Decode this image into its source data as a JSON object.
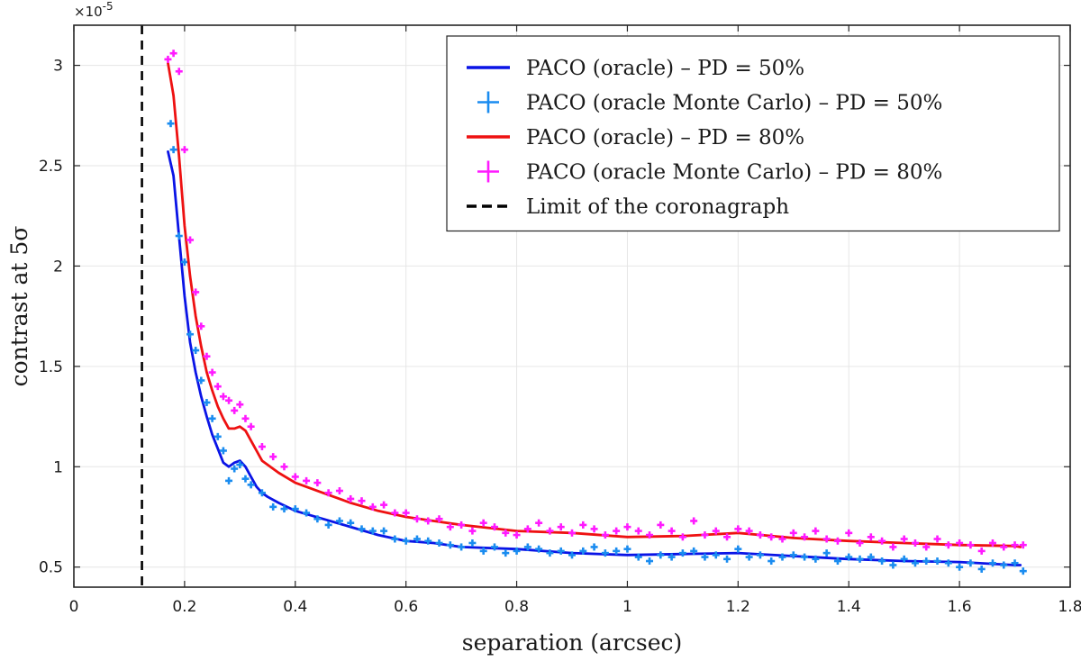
{
  "chart_data": {
    "type": "line",
    "xlabel": "separation (arcsec)",
    "ylabel": "contrast at 5σ",
    "y_exponent_label": "×10",
    "y_exponent_power": "-5",
    "xlim": [
      0,
      1.8
    ],
    "ylim": [
      0.4,
      3.2
    ],
    "x_ticks": [
      0,
      0.2,
      0.4,
      0.6,
      0.8,
      1,
      1.2,
      1.4,
      1.6,
      1.8
    ],
    "x_tick_labels": [
      "0",
      "0.2",
      "0.4",
      "0.6",
      "0.8",
      "1",
      "1.2",
      "1.4",
      "1.6",
      "1.8"
    ],
    "y_ticks": [
      0.5,
      1,
      1.5,
      2,
      2.5,
      3
    ],
    "y_tick_labels": [
      "0.5",
      "1",
      "1.5",
      "2",
      "2.5",
      "3"
    ],
    "grid": true,
    "legend_position": "top-right",
    "colors": {
      "blue_line": "#0a14e6",
      "blue_markers": "#1a8cf0",
      "red_line": "#ee1111",
      "magenta_markers": "#ff1aff",
      "limit_line": "#000000"
    },
    "series": [
      {
        "name": "PACO (oracle) – PD = 50%",
        "kind": "line",
        "color_key": "blue_line",
        "x": [
          0.17,
          0.18,
          0.19,
          0.2,
          0.21,
          0.22,
          0.23,
          0.24,
          0.25,
          0.26,
          0.27,
          0.28,
          0.29,
          0.3,
          0.31,
          0.32,
          0.33,
          0.34,
          0.35,
          0.37,
          0.4,
          0.45,
          0.5,
          0.55,
          0.6,
          0.65,
          0.7,
          0.8,
          0.9,
          1.0,
          1.1,
          1.2,
          1.3,
          1.4,
          1.5,
          1.6,
          1.7,
          1.71
        ],
        "y": [
          2.57,
          2.45,
          2.15,
          1.85,
          1.62,
          1.47,
          1.35,
          1.25,
          1.16,
          1.09,
          1.02,
          1.0,
          1.02,
          1.03,
          1.0,
          0.95,
          0.9,
          0.87,
          0.85,
          0.82,
          0.78,
          0.74,
          0.7,
          0.66,
          0.63,
          0.62,
          0.6,
          0.59,
          0.57,
          0.56,
          0.565,
          0.57,
          0.555,
          0.54,
          0.53,
          0.525,
          0.51,
          0.51
        ]
      },
      {
        "name": "PACO (oracle Monte Carlo) – PD = 50%",
        "kind": "markers",
        "color_key": "blue_markers",
        "x": [
          0.175,
          0.18,
          0.19,
          0.2,
          0.21,
          0.22,
          0.23,
          0.24,
          0.25,
          0.26,
          0.27,
          0.28,
          0.29,
          0.3,
          0.31,
          0.32,
          0.34,
          0.36,
          0.38,
          0.4,
          0.42,
          0.44,
          0.46,
          0.48,
          0.5,
          0.52,
          0.54,
          0.56,
          0.58,
          0.6,
          0.62,
          0.64,
          0.66,
          0.68,
          0.7,
          0.72,
          0.74,
          0.76,
          0.78,
          0.8,
          0.82,
          0.84,
          0.86,
          0.88,
          0.9,
          0.92,
          0.94,
          0.96,
          0.98,
          1.0,
          1.02,
          1.04,
          1.06,
          1.08,
          1.1,
          1.12,
          1.14,
          1.16,
          1.18,
          1.2,
          1.22,
          1.24,
          1.26,
          1.28,
          1.3,
          1.32,
          1.34,
          1.36,
          1.38,
          1.4,
          1.42,
          1.44,
          1.46,
          1.48,
          1.5,
          1.52,
          1.54,
          1.56,
          1.58,
          1.6,
          1.62,
          1.64,
          1.66,
          1.68,
          1.7,
          1.715
        ],
        "y": [
          2.71,
          2.58,
          2.15,
          2.02,
          1.66,
          1.58,
          1.43,
          1.32,
          1.24,
          1.15,
          1.08,
          0.93,
          0.99,
          1.01,
          0.94,
          0.91,
          0.87,
          0.8,
          0.79,
          0.79,
          0.77,
          0.74,
          0.71,
          0.73,
          0.72,
          0.69,
          0.68,
          0.68,
          0.64,
          0.63,
          0.64,
          0.63,
          0.62,
          0.61,
          0.6,
          0.62,
          0.58,
          0.6,
          0.57,
          0.58,
          0.6,
          0.59,
          0.57,
          0.58,
          0.56,
          0.58,
          0.6,
          0.57,
          0.58,
          0.59,
          0.55,
          0.53,
          0.56,
          0.55,
          0.57,
          0.58,
          0.55,
          0.56,
          0.54,
          0.59,
          0.55,
          0.56,
          0.53,
          0.55,
          0.56,
          0.55,
          0.54,
          0.57,
          0.53,
          0.55,
          0.54,
          0.55,
          0.53,
          0.51,
          0.54,
          0.52,
          0.53,
          0.53,
          0.52,
          0.5,
          0.52,
          0.49,
          0.52,
          0.51,
          0.52,
          0.48
        ]
      },
      {
        "name": "PACO (oracle) – PD = 80%",
        "kind": "line",
        "color_key": "red_line",
        "x": [
          0.17,
          0.18,
          0.19,
          0.2,
          0.21,
          0.22,
          0.23,
          0.24,
          0.25,
          0.26,
          0.27,
          0.28,
          0.29,
          0.3,
          0.31,
          0.32,
          0.33,
          0.34,
          0.35,
          0.37,
          0.4,
          0.45,
          0.5,
          0.55,
          0.6,
          0.65,
          0.7,
          0.8,
          0.9,
          1.0,
          1.1,
          1.2,
          1.3,
          1.4,
          1.5,
          1.6,
          1.7,
          1.71
        ],
        "y": [
          3.01,
          2.85,
          2.55,
          2.2,
          1.95,
          1.75,
          1.6,
          1.47,
          1.38,
          1.3,
          1.24,
          1.19,
          1.19,
          1.2,
          1.18,
          1.13,
          1.08,
          1.03,
          1.01,
          0.97,
          0.92,
          0.87,
          0.82,
          0.78,
          0.75,
          0.73,
          0.71,
          0.68,
          0.67,
          0.65,
          0.655,
          0.67,
          0.645,
          0.63,
          0.62,
          0.61,
          0.605,
          0.6
        ]
      },
      {
        "name": "PACO (oracle Monte Carlo) – PD = 80%",
        "kind": "markers",
        "color_key": "magenta_markers",
        "x": [
          0.17,
          0.18,
          0.19,
          0.2,
          0.21,
          0.22,
          0.23,
          0.24,
          0.25,
          0.26,
          0.27,
          0.28,
          0.29,
          0.3,
          0.31,
          0.32,
          0.34,
          0.36,
          0.38,
          0.4,
          0.42,
          0.44,
          0.46,
          0.48,
          0.5,
          0.52,
          0.54,
          0.56,
          0.58,
          0.6,
          0.62,
          0.64,
          0.66,
          0.68,
          0.7,
          0.72,
          0.74,
          0.76,
          0.78,
          0.8,
          0.82,
          0.84,
          0.86,
          0.88,
          0.9,
          0.92,
          0.94,
          0.96,
          0.98,
          1.0,
          1.02,
          1.04,
          1.06,
          1.08,
          1.1,
          1.12,
          1.14,
          1.16,
          1.18,
          1.2,
          1.22,
          1.24,
          1.26,
          1.28,
          1.3,
          1.32,
          1.34,
          1.36,
          1.38,
          1.4,
          1.42,
          1.44,
          1.46,
          1.48,
          1.5,
          1.52,
          1.54,
          1.56,
          1.58,
          1.6,
          1.62,
          1.64,
          1.66,
          1.68,
          1.7,
          1.715
        ],
        "y": [
          3.03,
          3.06,
          2.97,
          2.58,
          2.13,
          1.87,
          1.7,
          1.55,
          1.47,
          1.4,
          1.35,
          1.33,
          1.28,
          1.31,
          1.24,
          1.2,
          1.1,
          1.05,
          1.0,
          0.95,
          0.93,
          0.92,
          0.87,
          0.88,
          0.84,
          0.83,
          0.8,
          0.81,
          0.77,
          0.77,
          0.74,
          0.73,
          0.74,
          0.7,
          0.71,
          0.68,
          0.72,
          0.7,
          0.67,
          0.66,
          0.69,
          0.72,
          0.68,
          0.7,
          0.67,
          0.71,
          0.69,
          0.66,
          0.68,
          0.7,
          0.68,
          0.66,
          0.71,
          0.68,
          0.65,
          0.73,
          0.66,
          0.68,
          0.65,
          0.69,
          0.68,
          0.66,
          0.65,
          0.64,
          0.67,
          0.65,
          0.68,
          0.64,
          0.63,
          0.67,
          0.62,
          0.65,
          0.63,
          0.6,
          0.64,
          0.62,
          0.6,
          0.64,
          0.61,
          0.62,
          0.61,
          0.58,
          0.62,
          0.6,
          0.61,
          0.61
        ]
      },
      {
        "name": "Limit of the coronagraph",
        "kind": "vline",
        "color_key": "limit_line",
        "x_value": 0.123
      }
    ]
  }
}
